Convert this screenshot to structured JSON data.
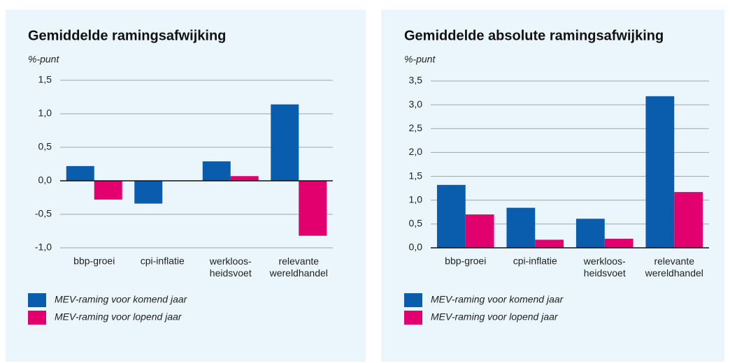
{
  "chart_data": [
    {
      "type": "bar",
      "title": "Gemiddelde ramingsafwijking",
      "y_label": "%-punt",
      "categories": [
        "bbp-groei",
        "cpi-inflatie",
        "werkloos- heidsvoet",
        "relevante wereldhandel"
      ],
      "series": [
        {
          "name": "MEV-raming voor komend jaar",
          "color": "#0a5cad",
          "values": [
            0.22,
            -0.34,
            0.29,
            1.14
          ]
        },
        {
          "name": "MEV-raming voor lopend jaar",
          "color": "#e2006f",
          "values": [
            -0.28,
            0,
            0.07,
            -0.82
          ]
        }
      ],
      "ylim": [
        -1.0,
        1.5
      ],
      "yticks": [
        {
          "value": -1.0,
          "label": "-1,0"
        },
        {
          "value": -0.5,
          "label": "-0,5"
        },
        {
          "value": 0,
          "label": "0,0"
        },
        {
          "value": 0.5,
          "label": "0,5"
        },
        {
          "value": 1.0,
          "label": "1,0"
        },
        {
          "value": 1.5,
          "label": "1,5"
        }
      ],
      "grid": true
    },
    {
      "type": "bar",
      "title": "Gemiddelde absolute ramingsafwijking",
      "y_label": "%-punt",
      "categories": [
        "bbp-groei",
        "cpi-inflatie",
        "werkloos- heidsvoet",
        "relevante wereldhandel"
      ],
      "series": [
        {
          "name": "MEV-raming voor komend jaar",
          "color": "#0a5cad",
          "values": [
            1.32,
            0.84,
            0.61,
            3.18
          ]
        },
        {
          "name": "MEV-raming voor lopend jaar",
          "color": "#e2006f",
          "values": [
            0.7,
            0.17,
            0.19,
            1.17
          ]
        }
      ],
      "ylim": [
        0,
        3.5
      ],
      "yticks": [
        {
          "value": 0,
          "label": "0,0"
        },
        {
          "value": 0.5,
          "label": "0,5"
        },
        {
          "value": 1.0,
          "label": "1,0"
        },
        {
          "value": 1.5,
          "label": "1,5"
        },
        {
          "value": 2.0,
          "label": "2,0"
        },
        {
          "value": 2.5,
          "label": "2,5"
        },
        {
          "value": 3.0,
          "label": "3,0"
        },
        {
          "value": 3.5,
          "label": "3,5"
        }
      ],
      "grid": true
    }
  ]
}
